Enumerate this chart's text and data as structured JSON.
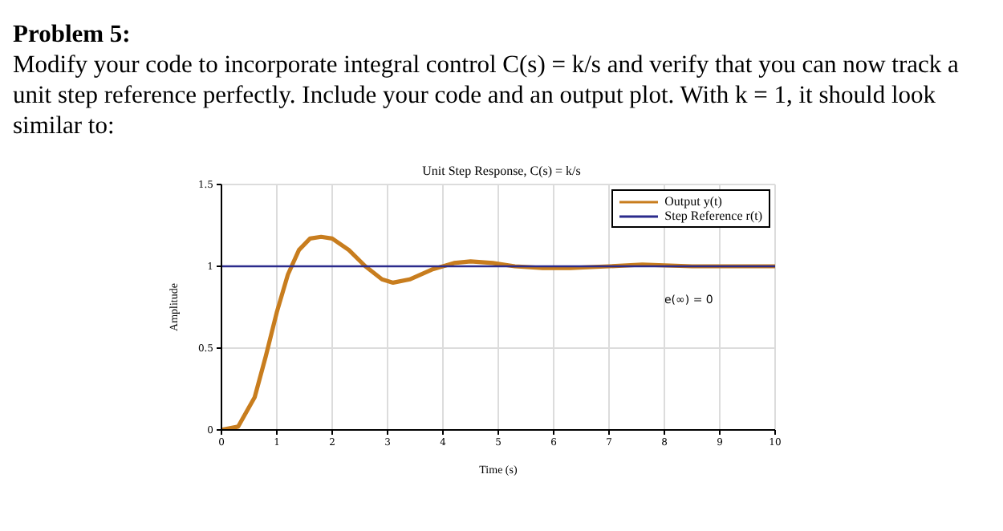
{
  "chart_data": {
    "type": "line",
    "title": "Unit Step Response, C(s) = k/s",
    "xlabel": "Time (s)",
    "ylabel": "Amplitude",
    "annotations": [
      "Problem 5:",
      "Modify your code to incorporate integral control C(s) = k/s and verify that you can now track a unit step reference perfectly. Include your code and an output plot. With k = 1, it should look similar to:",
      "e(∞) = 0"
    ],
    "series": [
      {
        "name": "Output y(t)",
        "color": "#c87d1e",
        "x": [
          0,
          0.3,
          0.6,
          0.8,
          1.0,
          1.2,
          1.4,
          1.6,
          1.8,
          2.0,
          2.3,
          2.6,
          2.9,
          3.1,
          3.4,
          3.8,
          4.2,
          4.5,
          4.9,
          5.3,
          5.8,
          6.3,
          7.0,
          7.6,
          8.5,
          10
        ],
        "values": [
          0,
          0.02,
          0.2,
          0.45,
          0.72,
          0.95,
          1.1,
          1.17,
          1.18,
          1.17,
          1.1,
          1.0,
          0.92,
          0.9,
          0.92,
          0.98,
          1.02,
          1.03,
          1.02,
          1.0,
          0.99,
          0.99,
          1.0,
          1.01,
          1.0,
          1.0
        ]
      },
      {
        "name": "Step Reference r(t)",
        "color": "#2b2b8c",
        "x": [
          0,
          10
        ],
        "values": [
          1,
          1
        ]
      }
    ],
    "xlim": [
      0,
      10
    ],
    "xticks": [
      0,
      1,
      2,
      3,
      4,
      5,
      6,
      7,
      8,
      9,
      10
    ],
    "ylim": [
      0,
      1.5
    ],
    "yticks": [
      0,
      0.5,
      1,
      1.5
    ],
    "grid": true,
    "legend": "top right"
  }
}
